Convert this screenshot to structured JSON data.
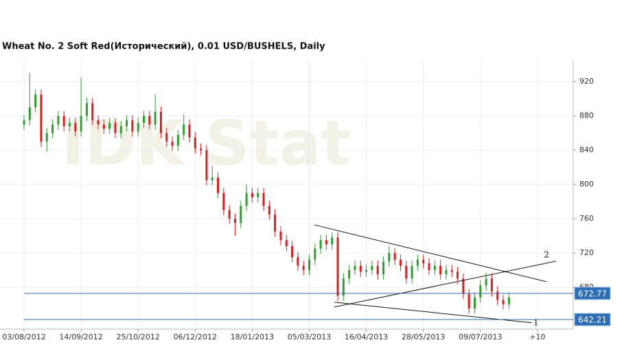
{
  "chart_data": {
    "type": "candlestick",
    "title": "Wheat  No. 2 Soft Red(Исторический), 0.01 USD/BUSHELS, Daily",
    "watermark": "IDK Stat",
    "x": [
      0,
      3,
      6,
      9,
      12,
      15,
      18,
      21,
      24,
      27,
      30,
      33,
      36,
      39,
      42,
      45,
      48,
      51,
      54,
      57,
      60,
      63,
      66,
      69,
      72,
      75,
      78,
      81,
      84,
      87,
      90,
      93,
      96,
      99,
      102,
      105,
      108,
      111,
      114,
      117,
      120,
      123,
      126,
      129,
      132,
      135,
      138,
      141,
      144,
      147,
      150,
      153,
      156,
      159,
      162,
      165,
      168,
      171,
      174,
      177,
      180,
      183,
      186,
      189,
      192,
      195,
      198,
      201,
      204,
      207,
      210,
      213,
      216,
      219,
      222,
      225,
      228,
      231,
      234,
      237,
      240,
      243,
      246,
      249,
      252,
      255
    ],
    "open": [
      870,
      875,
      890,
      905,
      850,
      860,
      870,
      880,
      868,
      872,
      862,
      880,
      895,
      875,
      870,
      865,
      872,
      860,
      868,
      875,
      862,
      872,
      880,
      870,
      885,
      860,
      850,
      845,
      858,
      870,
      855,
      842,
      840,
      805,
      808,
      790,
      770,
      760,
      755,
      775,
      790,
      785,
      790,
      775,
      765,
      745,
      735,
      728,
      715,
      705,
      700,
      712,
      725,
      735,
      730,
      738,
      670,
      690,
      700,
      705,
      698,
      700,
      705,
      695,
      710,
      720,
      712,
      705,
      690,
      705,
      712,
      708,
      700,
      705,
      695,
      700,
      698,
      690,
      672,
      655,
      668,
      682,
      690,
      675,
      665,
      660
    ],
    "high": [
      881,
      930,
      911,
      911,
      866,
      876,
      886,
      886,
      878,
      878,
      925,
      901,
      901,
      881,
      876,
      878,
      878,
      874,
      881,
      881,
      878,
      886,
      886,
      905,
      891,
      866,
      856,
      864,
      882,
      876,
      861,
      848,
      846,
      822,
      814,
      796,
      776,
      766,
      781,
      800,
      796,
      796,
      796,
      781,
      771,
      751,
      741,
      734,
      721,
      711,
      718,
      731,
      741,
      741,
      744,
      744,
      696,
      706,
      711,
      711,
      706,
      711,
      711,
      716,
      728,
      726,
      718,
      711,
      711,
      718,
      718,
      714,
      711,
      712,
      706,
      706,
      704,
      696,
      678,
      674,
      688,
      697,
      696,
      681,
      671,
      674
    ],
    "low": [
      864,
      869,
      884,
      844,
      838,
      854,
      864,
      862,
      862,
      856,
      856,
      874,
      869,
      864,
      859,
      859,
      854,
      854,
      862,
      856,
      856,
      866,
      864,
      864,
      854,
      844,
      839,
      839,
      852,
      849,
      836,
      834,
      799,
      799,
      784,
      764,
      754,
      740,
      749,
      769,
      779,
      779,
      769,
      759,
      739,
      729,
      722,
      709,
      699,
      694,
      694,
      706,
      719,
      724,
      724,
      664,
      664,
      684,
      694,
      692,
      692,
      694,
      689,
      689,
      704,
      706,
      699,
      684,
      684,
      699,
      702,
      694,
      694,
      689,
      689,
      692,
      684,
      666,
      649,
      649,
      662,
      676,
      669,
      659,
      654,
      654
    ],
    "close": [
      875,
      890,
      905,
      850,
      860,
      870,
      880,
      868,
      872,
      862,
      880,
      895,
      875,
      870,
      865,
      872,
      860,
      868,
      875,
      862,
      872,
      880,
      870,
      885,
      860,
      850,
      845,
      858,
      870,
      855,
      842,
      840,
      805,
      808,
      790,
      770,
      760,
      755,
      775,
      790,
      785,
      790,
      775,
      765,
      745,
      735,
      728,
      715,
      705,
      700,
      712,
      725,
      735,
      730,
      738,
      670,
      690,
      700,
      705,
      698,
      700,
      705,
      695,
      710,
      720,
      712,
      705,
      690,
      705,
      712,
      708,
      700,
      705,
      695,
      700,
      698,
      690,
      672,
      655,
      668,
      682,
      690,
      675,
      665,
      660,
      668
    ],
    "up_color": "#2e9e2e",
    "down_color": "#d62020",
    "xlim": [
      0,
      287
    ],
    "ylim": [
      631,
      945
    ],
    "xticks": [
      {
        "value": 0,
        "label": "03/08/2012"
      },
      {
        "value": 30,
        "label": "14/09/2012"
      },
      {
        "value": 60,
        "label": "25/10/2012"
      },
      {
        "value": 90,
        "label": "06/12/2012"
      },
      {
        "value": 120,
        "label": "18/01/2013"
      },
      {
        "value": 150,
        "label": "05/03/2013"
      },
      {
        "value": 180,
        "label": "16/04/2013"
      },
      {
        "value": 210,
        "label": "28/05/2013"
      },
      {
        "value": 240,
        "label": "09/07/2013"
      },
      {
        "value": 270,
        "label": "+10"
      }
    ],
    "yticks": [
      680,
      720,
      760,
      800,
      840,
      880,
      920
    ],
    "grid": true,
    "levels": [
      {
        "value": 672.77,
        "color": "#2d6db4"
      },
      {
        "value": 642.21,
        "color": "#2d6db4"
      }
    ],
    "trendlines": [
      {
        "points": [
          [
            152.7,
            752.8
          ],
          [
            274.7,
            686.4
          ]
        ]
      },
      {
        "label": "2",
        "points": [
          [
            163.2,
            656.8
          ],
          [
            279.8,
            710.4
          ]
        ]
      },
      {
        "label": "1",
        "points": [
          [
            163.2,
            662.4
          ],
          [
            267.1,
            638.4
          ]
        ]
      }
    ]
  }
}
